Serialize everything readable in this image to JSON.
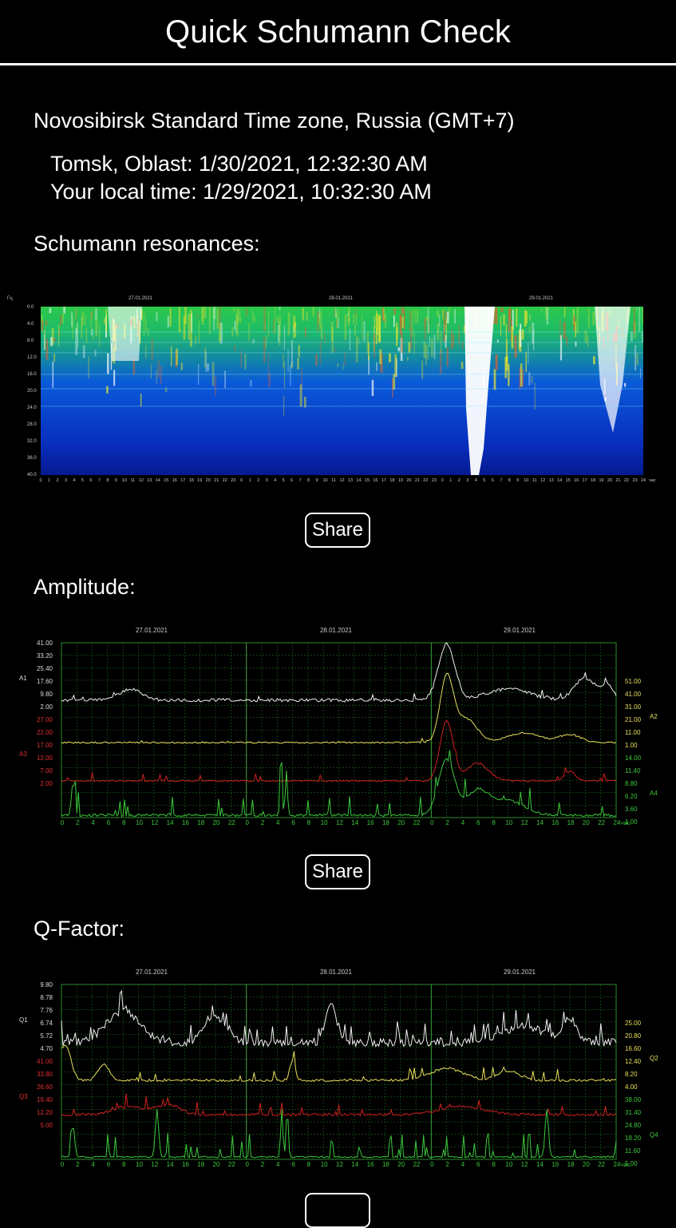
{
  "header": {
    "title": "Quick Schumann Check"
  },
  "info": {
    "timezone": "Novosibirsk Standard Time zone, Russia (GMT+7)",
    "station_time": "Tomsk, Oblast: 1/30/2021, 12:32:30 AM",
    "local_time": "Your local time: 1/29/2021, 10:32:30 AM"
  },
  "sections": {
    "resonances": {
      "title": "Schumann resonances:",
      "share_label": "Share"
    },
    "amplitude": {
      "title": "Amplitude:",
      "share_label": "Share"
    },
    "qfactor": {
      "title": "Q-Factor:"
    }
  },
  "spectrogram": {
    "unit_label": "Гц",
    "dates": [
      "27.01.2021",
      "28.01.2021",
      "29.01.2021"
    ],
    "y_ticks": [
      "0.0",
      "4.0",
      "8.0",
      "12.0",
      "16.0",
      "20.0",
      "24.0",
      "28.0",
      "32.0",
      "36.0",
      "40.0"
    ],
    "hour_unit": "час"
  },
  "amplitude_chart": {
    "dates": [
      "27.01.2021",
      "28.01.2021",
      "29.01.2021"
    ],
    "left_labels": {
      "a1": "A1",
      "a3": "A3"
    },
    "right_labels": {
      "a2": "A2",
      "a4": "A4"
    },
    "a1_ticks": [
      "41.00",
      "33.20",
      "25.40",
      "17.60",
      "9.80",
      "2.00"
    ],
    "a3_ticks": [
      "27.00",
      "22.00",
      "17.00",
      "12.00",
      "7.00",
      "2.00"
    ],
    "a2_ticks": [
      "51.00",
      "41.00",
      "31.00",
      "21.00",
      "11.00",
      "1.00"
    ],
    "a4_ticks": [
      "14.00",
      "11.40",
      "8.80",
      "6.20",
      "3.60",
      "1.00"
    ],
    "x_ticks": [
      "0",
      "2",
      "4",
      "6",
      "8",
      "10",
      "12",
      "14",
      "16",
      "18",
      "20",
      "22",
      "0",
      "2",
      "4",
      "6",
      "8",
      "10",
      "12",
      "14",
      "16",
      "18",
      "20",
      "22",
      "0",
      "2",
      "4",
      "6",
      "8",
      "10",
      "12",
      "14",
      "16",
      "18",
      "20",
      "22",
      "24"
    ],
    "hour_unit": "час."
  },
  "qfactor_chart": {
    "dates": [
      "27.01.2021",
      "28.01.2021",
      "29.01.2021"
    ],
    "left_labels": {
      "q1": "Q1",
      "q3": "Q3"
    },
    "right_labels": {
      "q2": "Q2",
      "q4": "Q4"
    },
    "q1_ticks": [
      "9.80",
      "8.78",
      "7.76",
      "6.74",
      "5.72",
      "4.70"
    ],
    "q3_ticks": [
      "41.00",
      "33.80",
      "26.60",
      "19.40",
      "12.20",
      "5.00"
    ],
    "q2_ticks": [
      "25.00",
      "20.80",
      "16.60",
      "12.40",
      "8.20",
      "4.00"
    ],
    "q4_ticks": [
      "38.00",
      "31.40",
      "24.80",
      "18.20",
      "11.60",
      "5.00"
    ],
    "x_ticks": [
      "0",
      "2",
      "4",
      "6",
      "8",
      "10",
      "12",
      "14",
      "16",
      "18",
      "20",
      "22",
      "0",
      "2",
      "4",
      "6",
      "8",
      "10",
      "12",
      "14",
      "16",
      "18",
      "20",
      "22",
      "0",
      "2",
      "4",
      "6",
      "8",
      "10",
      "12",
      "14",
      "16",
      "18",
      "20",
      "22",
      "24"
    ],
    "hour_unit": "час."
  },
  "colors": {
    "line_a1": "#f0f0f0",
    "line_a2": "#e6e05a",
    "line_a3": "#d02020",
    "line_a4": "#3cc83c",
    "grid": "#1f6b1f",
    "axis_text_green": "#3cc83c",
    "axis_text_red": "#e03030"
  }
}
